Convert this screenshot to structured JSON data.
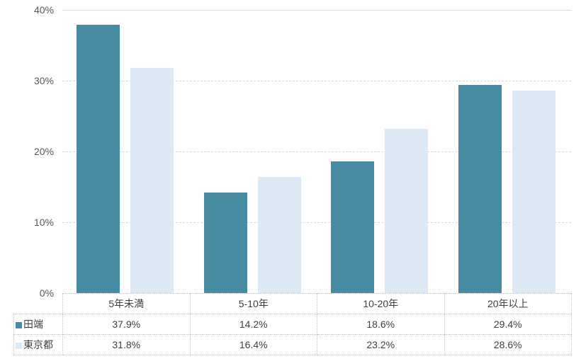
{
  "chart_data": {
    "type": "bar",
    "categories": [
      "5年未満",
      "5-10年",
      "10-20年",
      "20年以上"
    ],
    "series": [
      {
        "name": "田端",
        "color": "#478ba2",
        "values": [
          37.9,
          14.2,
          18.6,
          29.4
        ]
      },
      {
        "name": "東京都",
        "color": "#dde9f5",
        "values": [
          31.8,
          16.4,
          23.2,
          28.6
        ]
      }
    ],
    "title": "",
    "xlabel": "",
    "ylabel": "",
    "ylim": [
      0,
      40
    ],
    "yticks": [
      0,
      10,
      20,
      30,
      40
    ],
    "value_suffix": "%",
    "grid": true,
    "legend_position": "data-table-row-headers"
  },
  "colors": {
    "gridline": "#d9d9d9",
    "table_border": "#c0c0c0",
    "axis_text": "#595959",
    "table_text": "#3f3f3f",
    "background": "#ffffff"
  }
}
